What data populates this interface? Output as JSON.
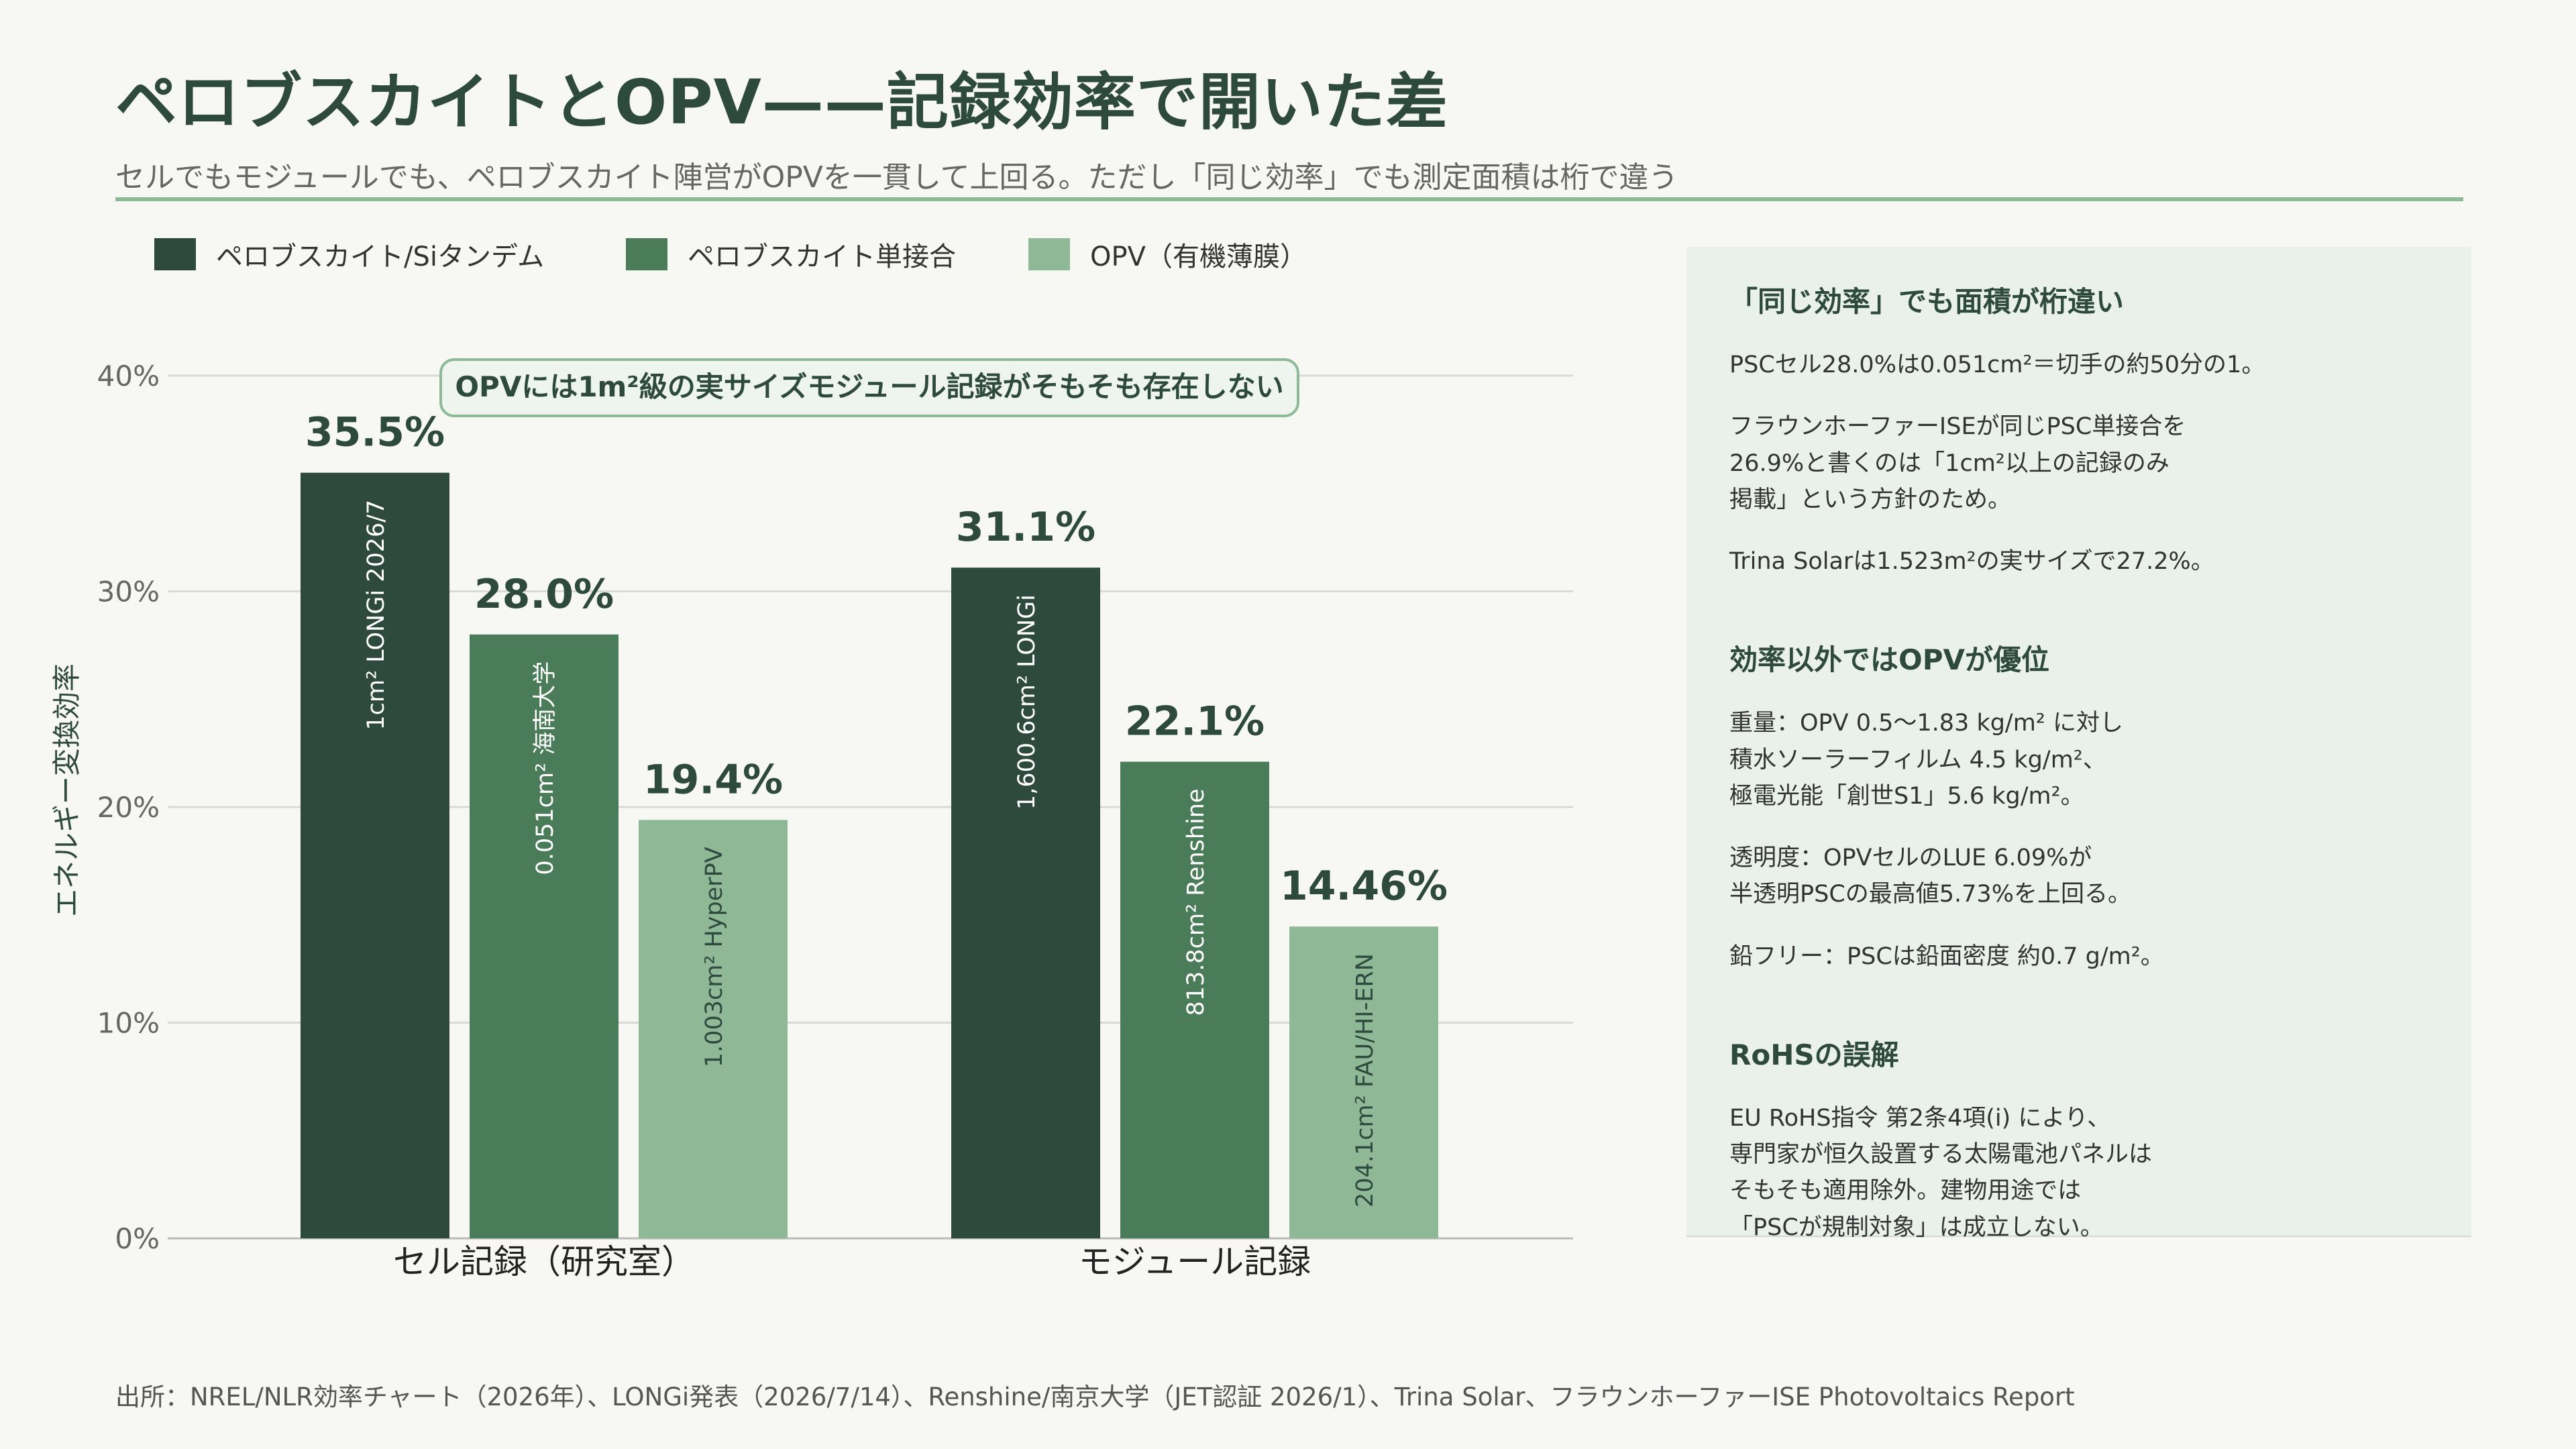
{
  "title": "ペロブスカイトとOPV——記録効率で開いた差",
  "subtitle": "セルでもモジュールでも、ペロブスカイト陣営がOPVを一貫して上回る。ただし「同じ効率」でも測定面積は桁で違う",
  "colors": {
    "tandem": "#2e4a3e",
    "perovskite_single": "#4a7c59",
    "opv": "#8fb996",
    "accent": "#2e4a3e",
    "grid": "#d9d9d9"
  },
  "chart_data": {
    "type": "bar",
    "categories": [
      "セル記録（研究室）",
      "モジュール記録"
    ],
    "series": [
      {
        "name": "ペロブスカイト/Siタンデム",
        "color": "#2e4a3e",
        "values": [
          35.5,
          31.1
        ],
        "value_labels": [
          "35.5%",
          "31.1%"
        ],
        "bar_notes": [
          "1cm²  LONGi 2026/7",
          "1,600.6cm²  LONGi"
        ]
      },
      {
        "name": "ペロブスカイト単接合",
        "color": "#4a7c59",
        "values": [
          28.0,
          22.1
        ],
        "value_labels": [
          "28.0%",
          "22.1%"
        ],
        "bar_notes": [
          "0.051cm²  海南大学",
          "813.8cm²  Renshine"
        ]
      },
      {
        "name": "OPV（有機薄膜）",
        "color": "#8fb996",
        "values": [
          19.4,
          14.46
        ],
        "value_labels": [
          "19.4%",
          "14.46%"
        ],
        "bar_notes": [
          "1.003cm²  HyperPV",
          "204.1cm²  FAU/HI-ERN"
        ]
      }
    ],
    "ylabel": "エネルギー変換効率",
    "ylim": [
      0,
      40
    ],
    "yticks": [
      0,
      10,
      20,
      30,
      40
    ],
    "ytick_labels": [
      "0%",
      "10%",
      "20%",
      "30%",
      "40%"
    ],
    "grid": true,
    "legend": "top-left",
    "annotation": "OPVには1m²級の実サイズモジュール記録がそもそも存在しない"
  },
  "panel": {
    "sec1_title": "「同じ効率」でも面積が桁違い",
    "sec1_p1": "PSCセル28.0%は0.051cm²＝切手の約50分の1。",
    "sec1_p2": "フラウンホーファーISEが同じPSC単接合を\n26.9%と書くのは「1cm²以上の記録のみ\n掲載」という方針のため。",
    "sec1_p3": "Trina Solarは1.523m²の実サイズで27.2%。",
    "sec2_title": "効率以外ではOPVが優位",
    "sec2_p1": "重量：OPV 0.5〜1.83 kg/m² に対し\n積水ソーラーフィルム 4.5 kg/m²、\n極電光能「創世S1」5.6 kg/m²。",
    "sec2_p2": "透明度：OPVセルのLUE 6.09%が\n半透明PSCの最高値5.73%を上回る。",
    "sec2_p3": "鉛フリー：PSCは鉛面密度 約0.7 g/m²。",
    "sec3_title": "RoHSの誤解",
    "sec3_p1": "EU RoHS指令 第2条4項(i) により、\n専門家が恒久設置する太陽電池パネルは\nそもそも適用除外。建物用途では\n「PSCが規制対象」は成立しない。"
  },
  "source": "出所：NREL/NLR効率チャート（2026年）、LONGi発表（2026/7/14）、Renshine/南京大学（JET認証 2026/1）、Trina Solar、フラウンホーファーISE Photovoltaics Report"
}
